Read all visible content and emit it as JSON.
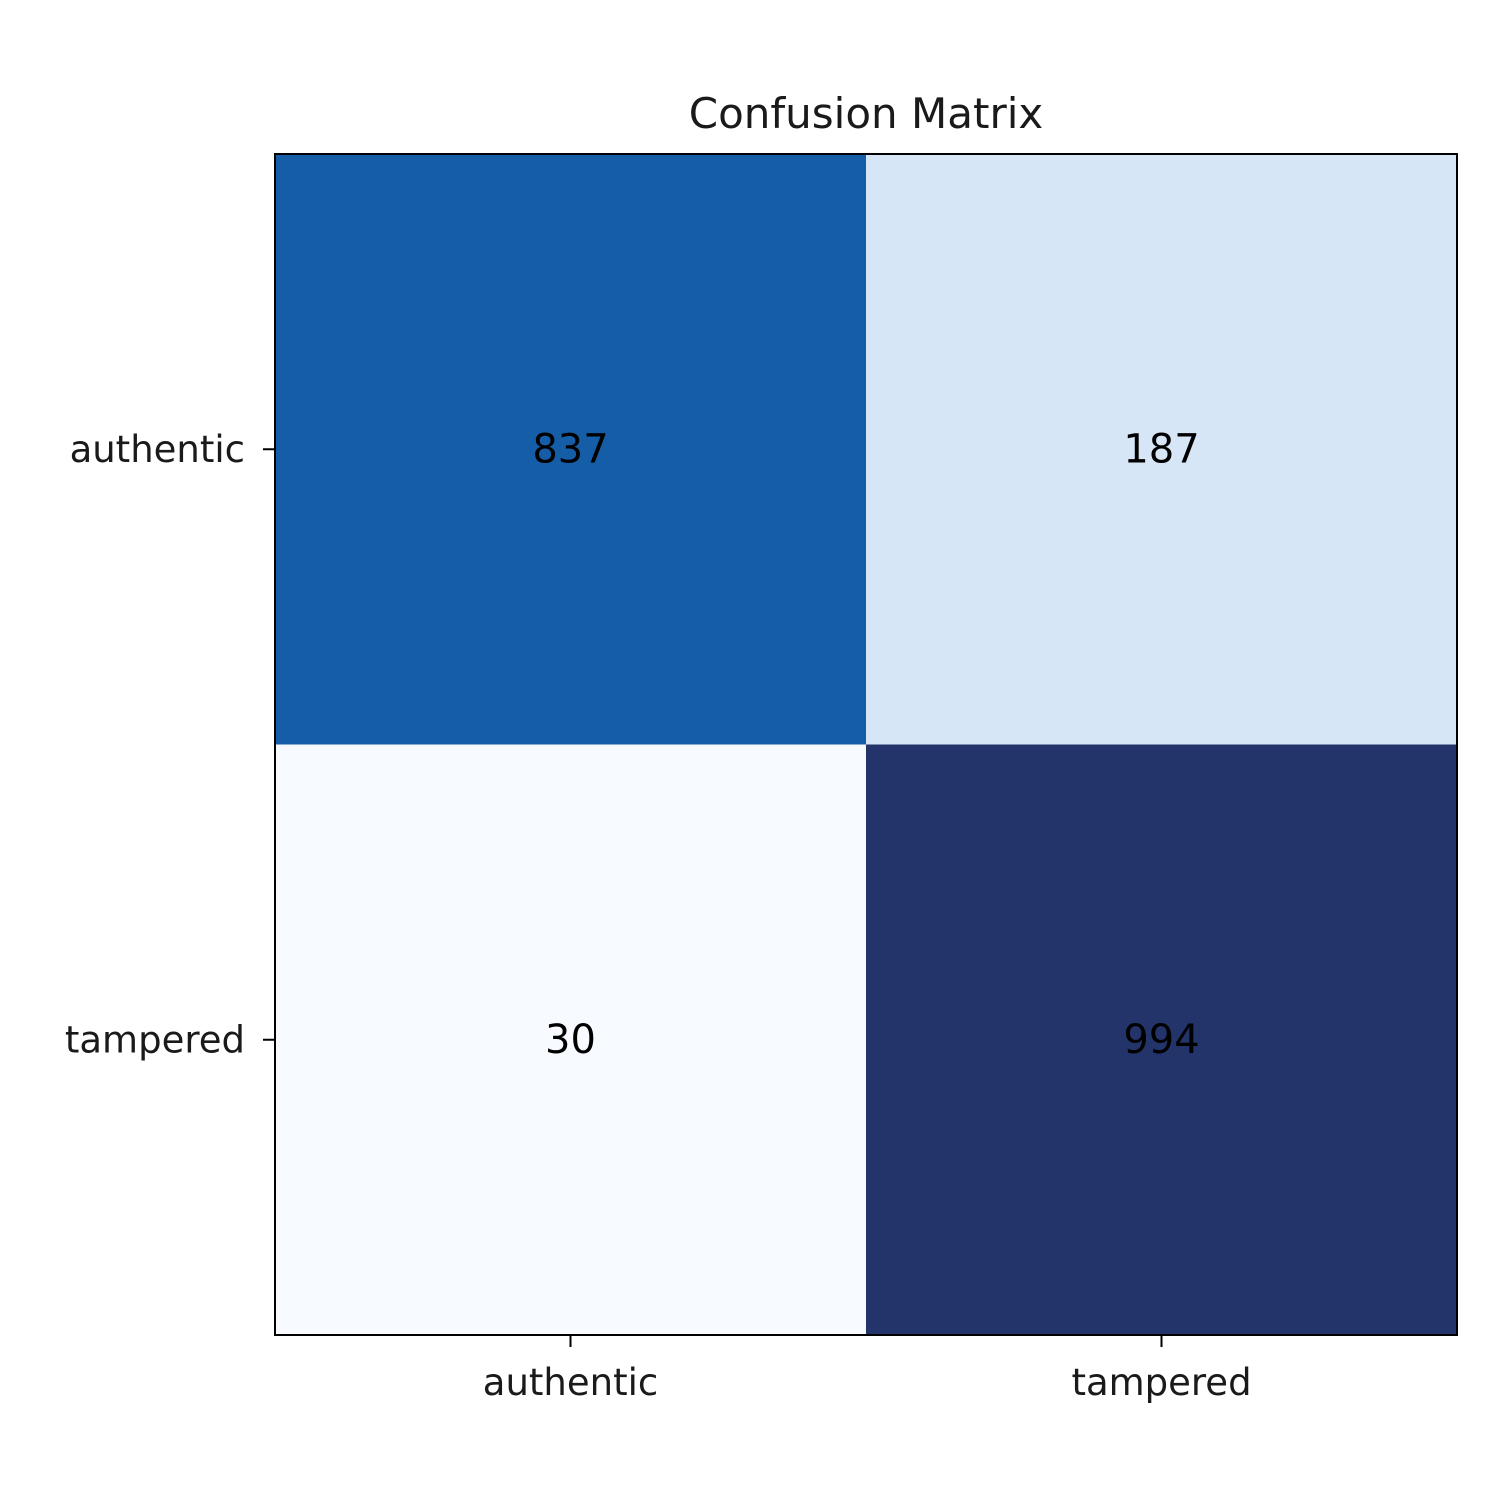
{
  "chart_data": {
    "type": "heatmap",
    "title": "Confusion Matrix",
    "row_labels": [
      "authentic",
      "tampered"
    ],
    "col_labels": [
      "authentic",
      "tampered"
    ],
    "values": [
      [
        837,
        187
      ],
      [
        30,
        994
      ]
    ],
    "colormap": "Blues",
    "cell_colors": [
      [
        "#155ea7",
        "#d7e6f6"
      ],
      [
        "#f7fbff",
        "#22346a"
      ]
    ],
    "grid": false,
    "colorbar": false
  }
}
